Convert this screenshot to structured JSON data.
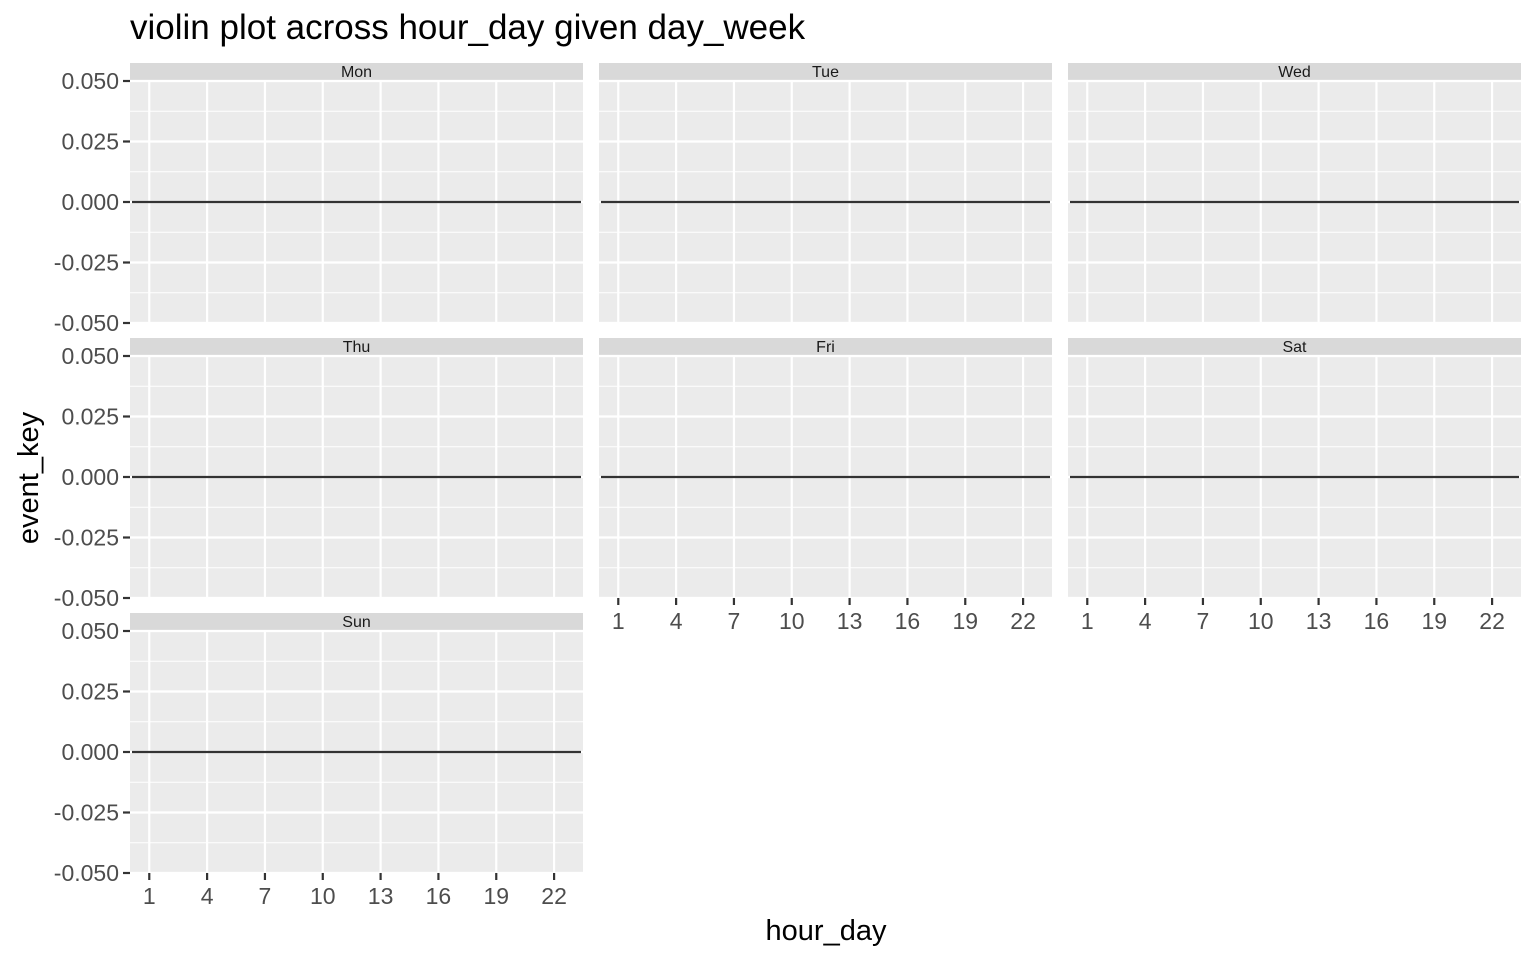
{
  "chart_data": {
    "type": "violin",
    "title": "violin plot across hour_day given day_week",
    "xlabel": "hour_day",
    "ylabel": "event_key",
    "x_ticks": [
      "1",
      "4",
      "7",
      "10",
      "13",
      "16",
      "19",
      "22"
    ],
    "x_range": [
      0,
      23.5
    ],
    "y_ticks": [
      "-0.050",
      "-0.025",
      "0.000",
      "0.025",
      "0.050"
    ],
    "ylim": [
      -0.05,
      0.05
    ],
    "facets": [
      {
        "label": "Mon",
        "value": 0.0
      },
      {
        "label": "Tue",
        "value": 0.0
      },
      {
        "label": "Wed",
        "value": 0.0
      },
      {
        "label": "Thu",
        "value": 0.0
      },
      {
        "label": "Fri",
        "value": 0.0
      },
      {
        "label": "Sat",
        "value": 0.0
      },
      {
        "label": "Sun",
        "value": 0.0
      }
    ],
    "facet_columns": 3,
    "grid": true,
    "colors": {
      "panel_background": "#ebebeb",
      "strip_background": "#d9d9d9",
      "grid_line": "#ffffff",
      "data_line": "#333333"
    }
  }
}
